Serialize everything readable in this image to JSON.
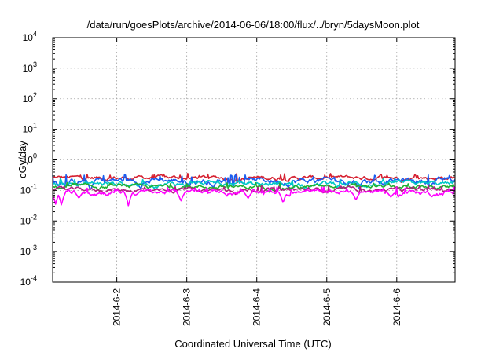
{
  "chart_data": {
    "type": "line",
    "title": "/data/run/goesPlots/archive/2014-06-06/18:00/flux/../bryn/5daysMoon.plot",
    "xlabel": "Coordinated Universal Time (UTC)",
    "ylabel": "cGy/day",
    "yscale": "log",
    "ylim": [
      0.0001,
      10000
    ],
    "xlim": [
      "2014-06-01T02:00",
      "2014-06-06T20:00"
    ],
    "yticks": [
      {
        "base": "10",
        "exp": "-4"
      },
      {
        "base": "10",
        "exp": "-3"
      },
      {
        "base": "10",
        "exp": "-2"
      },
      {
        "base": "10",
        "exp": "-1"
      },
      {
        "base": "10",
        "exp": "0"
      },
      {
        "base": "10",
        "exp": "1"
      },
      {
        "base": "10",
        "exp": "2"
      },
      {
        "base": "10",
        "exp": "3"
      },
      {
        "base": "10",
        "exp": "4"
      }
    ],
    "xticks": [
      "2014-6-2",
      "2014-6-3",
      "2014-6-4",
      "2014-6-5",
      "2014-6-6"
    ],
    "grid": true,
    "series": [
      {
        "color": "#d62030",
        "level": 0.26,
        "spread": 0.05,
        "dips": []
      },
      {
        "color": "#1a5cf0",
        "level": 0.21,
        "spread": 0.06,
        "dips": [
          [
            "2014-06-01T15:00",
            0.1
          ],
          [
            "2014-06-03T09:00",
            0.12
          ],
          [
            "2014-06-05T11:00",
            0.11
          ]
        ]
      },
      {
        "color": "#00c8c8",
        "level": 0.165,
        "spread": 0.04,
        "dips": []
      },
      {
        "color": "#20b030",
        "level": 0.13,
        "spread": 0.025,
        "dips": []
      },
      {
        "color": "#b02080",
        "level": 0.105,
        "spread": 0.02,
        "dips": []
      },
      {
        "color": "#ff00ff",
        "level": 0.088,
        "spread": 0.02,
        "dips": [
          [
            "2014-06-01T03:00",
            0.035
          ],
          [
            "2014-06-01T05:00",
            0.032
          ],
          [
            "2014-06-01T11:00",
            0.055
          ],
          [
            "2014-06-02T04:00",
            0.03
          ],
          [
            "2014-06-02T22:00",
            0.045
          ],
          [
            "2014-06-03T21:00",
            0.055
          ],
          [
            "2014-06-04T09:00",
            0.038
          ],
          [
            "2014-06-05T10:00",
            0.048
          ],
          [
            "2014-06-05T22:00",
            0.06
          ],
          [
            "2014-06-06T12:00",
            0.06
          ]
        ]
      }
    ]
  }
}
